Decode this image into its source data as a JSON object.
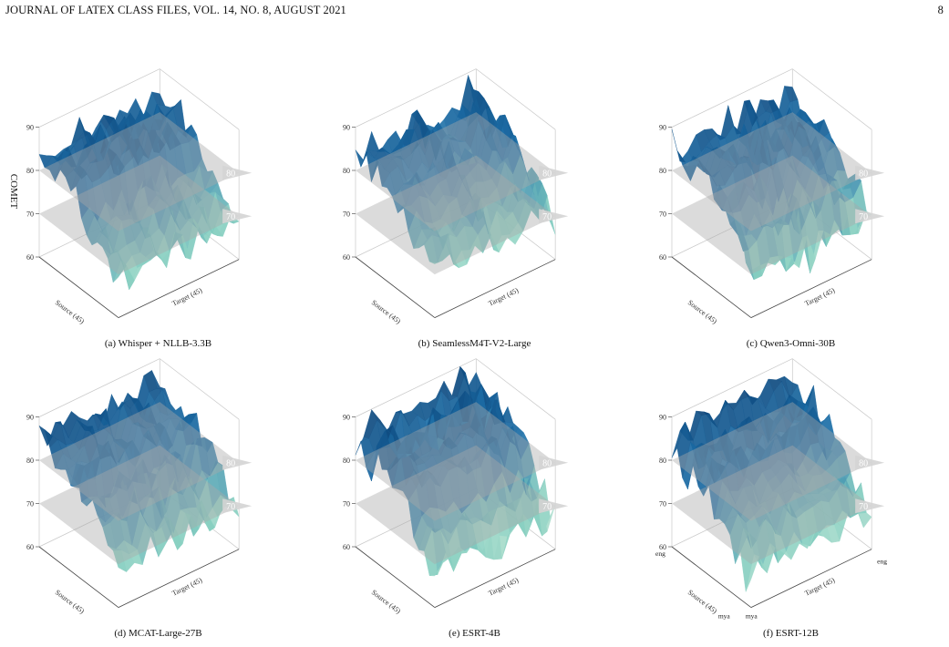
{
  "header": {
    "journal": "JOURNAL OF LATEX CLASS FILES, VOL. 14, NO. 8, AUGUST 2021",
    "page_number": "8"
  },
  "colors": {
    "surface_low": "#e6f5e2",
    "surface_mid": "#86cfc1",
    "surface_high": "#1d6fa8",
    "surface_peak": "#0b3f73",
    "plane": "#a9a9a9"
  },
  "chart_data": [
    {
      "type": "surface",
      "caption": "(a) Whisper + NLLB-3.3B",
      "zlabel": "COMET",
      "xlabel": "Source (45)",
      "ylabel": "Target (45)",
      "zlim": [
        60,
        90
      ],
      "zticks": [
        "60",
        "70",
        "80",
        "90"
      ],
      "planes": [
        {
          "value": 70,
          "label": "70"
        },
        {
          "value": 80,
          "label": "80"
        }
      ],
      "grid_size": [
        45,
        45
      ],
      "z_range_observed": [
        58,
        90
      ],
      "corner_labels": []
    },
    {
      "type": "surface",
      "caption": "(b) SeamlessM4T-V2-Large",
      "zlabel": "",
      "xlabel": "Source (45)",
      "ylabel": "Target (45)",
      "zlim": [
        60,
        90
      ],
      "zticks": [
        "60",
        "70",
        "80",
        "90"
      ],
      "planes": [
        {
          "value": 70,
          "label": "70"
        },
        {
          "value": 80,
          "label": "80"
        }
      ],
      "grid_size": [
        45,
        45
      ],
      "z_range_observed": [
        62,
        90
      ],
      "corner_labels": []
    },
    {
      "type": "surface",
      "caption": "(c) Qwen3-Omni-30B",
      "zlabel": "",
      "xlabel": "Source (45)",
      "ylabel": "Target (45)",
      "zlim": [
        60,
        90
      ],
      "zticks": [
        "60",
        "70",
        "80",
        "90"
      ],
      "planes": [
        {
          "value": 70,
          "label": "70"
        },
        {
          "value": 80,
          "label": "80"
        }
      ],
      "grid_size": [
        45,
        45
      ],
      "z_range_observed": [
        60,
        90
      ],
      "corner_labels": []
    },
    {
      "type": "surface",
      "caption": "(d) MCAT-Large-27B",
      "zlabel": "",
      "xlabel": "Source (45)",
      "ylabel": "Target (45)",
      "zlim": [
        60,
        90
      ],
      "zticks": [
        "60",
        "70",
        "80",
        "90"
      ],
      "planes": [
        {
          "value": 70,
          "label": "70"
        },
        {
          "value": 80,
          "label": "80"
        }
      ],
      "grid_size": [
        45,
        45
      ],
      "z_range_observed": [
        60,
        90
      ],
      "corner_labels": []
    },
    {
      "type": "surface",
      "caption": "(e) ESRT-4B",
      "zlabel": "",
      "xlabel": "Source (45)",
      "ylabel": "Target (45)",
      "zlim": [
        60,
        90
      ],
      "zticks": [
        "60",
        "70",
        "80",
        "90"
      ],
      "planes": [
        {
          "value": 70,
          "label": "70"
        },
        {
          "value": 80,
          "label": "80"
        }
      ],
      "grid_size": [
        45,
        45
      ],
      "z_range_observed": [
        60,
        90
      ],
      "corner_labels": []
    },
    {
      "type": "surface",
      "caption": "(f) ESRT-12B",
      "zlabel": "",
      "xlabel": "Source (45)",
      "ylabel": "Target (45)",
      "zlim": [
        60,
        90
      ],
      "zticks": [
        "60",
        "70",
        "80",
        "90"
      ],
      "planes": [
        {
          "value": 70,
          "label": "70"
        },
        {
          "value": 80,
          "label": "80"
        }
      ],
      "grid_size": [
        45,
        45
      ],
      "z_range_observed": [
        60,
        90
      ],
      "corner_labels": [
        "eng",
        "eng",
        "mya",
        "mya"
      ]
    }
  ]
}
